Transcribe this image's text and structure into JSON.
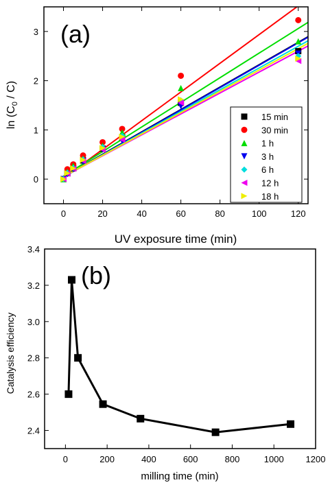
{
  "chart_data": [
    {
      "type": "scatter",
      "panel_label": "(a)",
      "xlabel": "UV exposure time (min)",
      "ylabel": "ln (C",
      "ylabel_sub": "0",
      "ylabel_tail": " / C)",
      "xlim": [
        -10,
        125
      ],
      "ylim": [
        -0.5,
        3.5
      ],
      "xticks": [
        0,
        20,
        40,
        60,
        80,
        100,
        120
      ],
      "yticks": [
        0,
        1,
        2,
        3
      ],
      "grid": false,
      "legend_position": "right",
      "series": [
        {
          "name": "15 min",
          "color": "#000000",
          "marker": "square",
          "x": [
            0,
            2,
            5,
            10,
            20,
            30,
            60,
            120
          ],
          "y": [
            0,
            0.12,
            0.22,
            0.38,
            0.62,
            0.85,
            1.55,
            2.6
          ],
          "fit": [
            0.05,
            0.02275
          ]
        },
        {
          "name": "30 min",
          "color": "#ff0000",
          "marker": "circle",
          "x": [
            0,
            2,
            5,
            10,
            20,
            30,
            60,
            120
          ],
          "y": [
            0,
            0.2,
            0.3,
            0.48,
            0.75,
            1.02,
            2.1,
            3.23
          ],
          "fit": [
            0.02,
            0.02917
          ]
        },
        {
          "name": "1 h",
          "color": "#00dd00",
          "marker": "triangle-up",
          "x": [
            0,
            2,
            5,
            10,
            20,
            30,
            60,
            120
          ],
          "y": [
            0,
            0.15,
            0.27,
            0.42,
            0.68,
            0.95,
            1.85,
            2.8
          ],
          "fit": [
            0.06,
            0.025
          ]
        },
        {
          "name": "3 h",
          "color": "#0000ee",
          "marker": "triangle-down",
          "x": [
            0,
            2,
            5,
            10,
            20,
            30,
            60,
            120
          ],
          "y": [
            0,
            0.1,
            0.2,
            0.35,
            0.6,
            0.78,
            1.48,
            2.55
          ],
          "fit": [
            0.04,
            0.02275
          ]
        },
        {
          "name": "6 h",
          "color": "#00dddd",
          "marker": "diamond",
          "x": [
            0,
            2,
            5,
            10,
            20,
            30,
            60,
            120
          ],
          "y": [
            0,
            0.13,
            0.23,
            0.4,
            0.65,
            0.88,
            1.6,
            2.5
          ],
          "fit": [
            0.05,
            0.02208
          ]
        },
        {
          "name": "12 h",
          "color": "#ee00ee",
          "marker": "triangle-left",
          "x": [
            0,
            2,
            5,
            10,
            20,
            30,
            60,
            120
          ],
          "y": [
            0,
            0.11,
            0.21,
            0.37,
            0.6,
            0.8,
            1.55,
            2.4
          ],
          "fit": [
            0.05,
            0.02125
          ]
        },
        {
          "name": "18 h",
          "color": "#eeee00",
          "marker": "triangle-right",
          "x": [
            0,
            2,
            5,
            10,
            20,
            30,
            60,
            120
          ],
          "y": [
            0,
            0.12,
            0.22,
            0.39,
            0.63,
            0.86,
            1.62,
            2.45
          ],
          "fit": [
            0.05,
            0.02167
          ]
        }
      ]
    },
    {
      "type": "line",
      "panel_label": "(b)",
      "xlabel": "milling time (min)",
      "ylabel": "Catalysis efficiency",
      "xlim": [
        -100,
        1200
      ],
      "ylim": [
        2.3,
        3.4
      ],
      "xticks": [
        0,
        200,
        400,
        600,
        800,
        1000,
        1200
      ],
      "yticks": [
        "2.4",
        "2.6",
        "2.8",
        "3.0",
        "3.2",
        "3.4"
      ],
      "grid": false,
      "series": [
        {
          "color": "#000000",
          "marker": "square",
          "x": [
            15,
            30,
            60,
            180,
            360,
            720,
            1080
          ],
          "y": [
            2.6,
            3.23,
            2.8,
            2.545,
            2.465,
            2.39,
            2.435
          ]
        }
      ]
    }
  ]
}
